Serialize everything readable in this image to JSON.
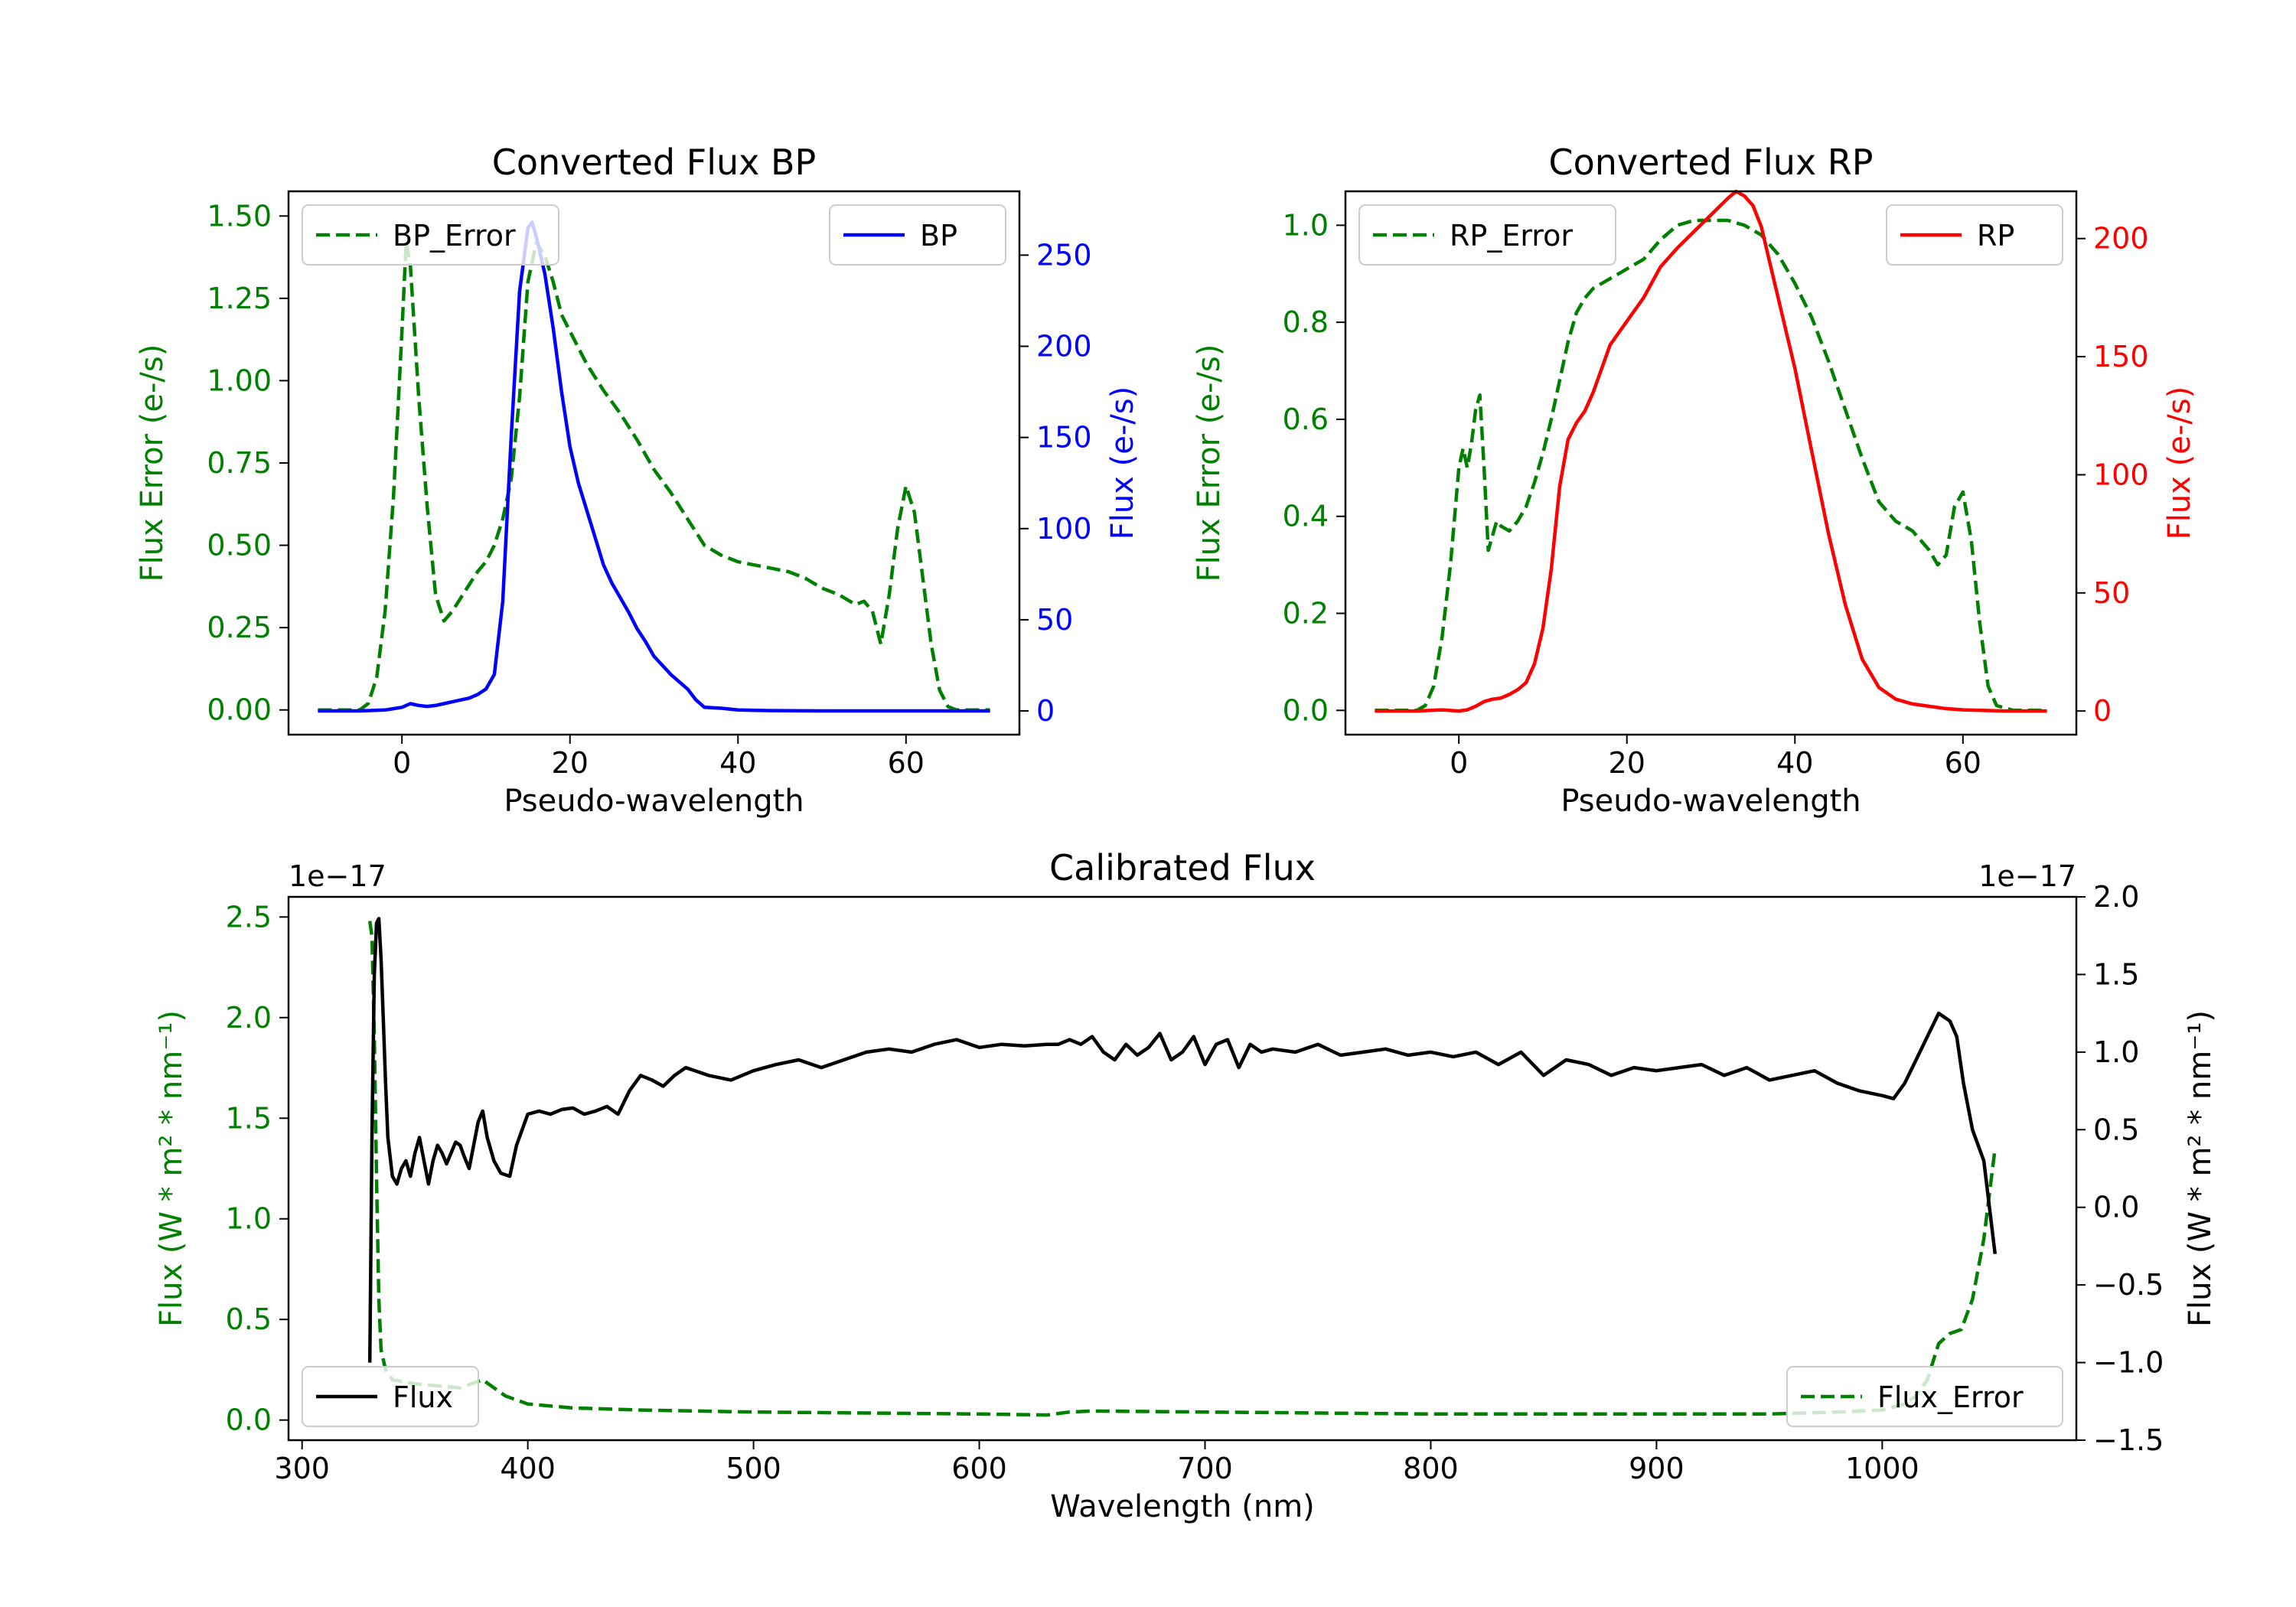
{
  "chart_data": [
    {
      "type": "line",
      "title": "Converted Flux BP",
      "xlabel": "Pseudo-wavelength",
      "ylabel_left": "Flux Error (e-/s)",
      "ylabel_right": "Flux (e-/s)",
      "xlim": [
        -13.5,
        73.5
      ],
      "ylim_left": [
        -0.075,
        1.575
      ],
      "ylim_right": [
        -13,
        285
      ],
      "xticks": [
        0,
        20,
        40,
        60
      ],
      "yticks_left": [
        0.0,
        0.25,
        0.5,
        0.75,
        1.0,
        1.25,
        1.5
      ],
      "yticks_left_labels": [
        "0.00",
        "0.25",
        "0.50",
        "0.75",
        "1.00",
        "1.25",
        "1.50"
      ],
      "yticks_right": [
        0,
        50,
        100,
        150,
        200,
        250
      ],
      "yticks_right_labels": [
        "0",
        "50",
        "100",
        "150",
        "200",
        "250"
      ],
      "legend": {
        "left": "BP_Error",
        "right": "BP"
      },
      "series": [
        {
          "name": "BP_Error",
          "axis": "left",
          "color": "#008000",
          "dash": "dashed",
          "x": [
            -10,
            -5,
            -4,
            -3,
            -2,
            -1,
            0,
            0.5,
            1,
            2,
            3,
            4,
            5,
            6,
            7,
            8,
            9,
            10,
            11,
            12,
            13,
            14,
            15,
            16,
            17,
            18,
            19,
            20,
            22,
            24,
            26,
            28,
            30,
            32,
            34,
            36,
            38,
            40,
            42,
            44,
            46,
            48,
            50,
            52,
            54,
            55,
            56,
            57,
            58,
            59,
            60,
            61,
            62,
            63,
            64,
            65,
            66,
            68,
            70
          ],
          "y": [
            0,
            0,
            0.02,
            0.1,
            0.3,
            0.65,
            1.15,
            1.42,
            1.35,
            0.95,
            0.62,
            0.35,
            0.27,
            0.3,
            0.34,
            0.38,
            0.42,
            0.45,
            0.5,
            0.58,
            0.7,
            0.95,
            1.3,
            1.42,
            1.38,
            1.3,
            1.2,
            1.15,
            1.05,
            0.97,
            0.9,
            0.82,
            0.73,
            0.66,
            0.58,
            0.5,
            0.47,
            0.45,
            0.44,
            0.43,
            0.42,
            0.4,
            0.37,
            0.35,
            0.32,
            0.33,
            0.3,
            0.2,
            0.35,
            0.55,
            0.68,
            0.6,
            0.4,
            0.2,
            0.06,
            0.01,
            0,
            0,
            0
          ]
        },
        {
          "name": "BP",
          "axis": "right",
          "color": "#0000ff",
          "dash": "solid",
          "x": [
            -10,
            -5,
            -2,
            0,
            1,
            2,
            3,
            4,
            5,
            6,
            7,
            8,
            9,
            10,
            11,
            12,
            13,
            14,
            15,
            15.5,
            16,
            17,
            18,
            19,
            20,
            21,
            22,
            23,
            24,
            25,
            26,
            27,
            28,
            29,
            30,
            31,
            32,
            33,
            34,
            35,
            36,
            38,
            40,
            42,
            44,
            46,
            48,
            50,
            55,
            60,
            65,
            70
          ],
          "y": [
            0,
            0,
            0.5,
            2,
            4,
            3,
            2.5,
            3,
            4,
            5,
            6,
            7,
            9,
            12,
            20,
            60,
            150,
            230,
            265,
            268,
            260,
            240,
            210,
            175,
            145,
            125,
            110,
            95,
            80,
            70,
            62,
            54,
            45,
            38,
            30,
            25,
            20,
            16,
            12,
            6,
            2,
            1.5,
            0.5,
            0.3,
            0.2,
            0.1,
            0.05,
            0,
            0,
            0,
            0,
            0
          ]
        }
      ]
    },
    {
      "type": "line",
      "title": "Converted Flux RP",
      "xlabel": "Pseudo-wavelength",
      "ylabel_left": "Flux Error (e-/s)",
      "ylabel_right": "Flux (e-/s)",
      "xlim": [
        -13.5,
        73.5
      ],
      "ylim_left": [
        -0.05,
        1.07
      ],
      "ylim_right": [
        -10,
        220
      ],
      "xticks": [
        0,
        20,
        40,
        60
      ],
      "yticks_left": [
        0.0,
        0.2,
        0.4,
        0.6,
        0.8,
        1.0
      ],
      "yticks_left_labels": [
        "0.0",
        "0.2",
        "0.4",
        "0.6",
        "0.8",
        "1.0"
      ],
      "yticks_right": [
        0,
        50,
        100,
        150,
        200
      ],
      "yticks_right_labels": [
        "0",
        "50",
        "100",
        "150",
        "200"
      ],
      "legend": {
        "left": "RP_Error",
        "right": "RP"
      },
      "series": [
        {
          "name": "RP_Error",
          "axis": "left",
          "color": "#008000",
          "dash": "dashed",
          "x": [
            -10,
            -5,
            -4,
            -3,
            -2,
            -1,
            0,
            0.5,
            1,
            1.5,
            2,
            2.5,
            3,
            3.5,
            4,
            4.5,
            5,
            6,
            7,
            8,
            9,
            10,
            11,
            12,
            13,
            14,
            15,
            16,
            17,
            18,
            19,
            20,
            22,
            24,
            26,
            28,
            30,
            32,
            34,
            36,
            38,
            40,
            42,
            44,
            46,
            48,
            50,
            52,
            54,
            55,
            56,
            57,
            58,
            59,
            60,
            61,
            62,
            63,
            64,
            66,
            70
          ],
          "y": [
            0,
            0,
            0.01,
            0.05,
            0.15,
            0.3,
            0.5,
            0.54,
            0.5,
            0.55,
            0.62,
            0.65,
            0.5,
            0.33,
            0.36,
            0.39,
            0.38,
            0.37,
            0.39,
            0.42,
            0.47,
            0.53,
            0.6,
            0.68,
            0.76,
            0.82,
            0.85,
            0.87,
            0.88,
            0.89,
            0.9,
            0.91,
            0.93,
            0.97,
            1.0,
            1.01,
            1.01,
            1.01,
            1.0,
            0.98,
            0.94,
            0.88,
            0.81,
            0.72,
            0.62,
            0.52,
            0.43,
            0.39,
            0.37,
            0.35,
            0.33,
            0.3,
            0.32,
            0.42,
            0.45,
            0.35,
            0.18,
            0.05,
            0.01,
            0,
            0
          ]
        },
        {
          "name": "RP",
          "axis": "right",
          "color": "#ff0000",
          "dash": "solid",
          "x": [
            -10,
            -5,
            -2,
            0,
            1,
            2,
            3,
            4,
            5,
            6,
            7,
            8,
            9,
            10,
            11,
            12,
            13,
            14,
            15,
            16,
            17,
            18,
            19,
            20,
            22,
            24,
            26,
            28,
            30,
            32,
            33,
            34,
            35,
            36,
            37,
            38,
            40,
            42,
            44,
            46,
            48,
            50,
            52,
            54,
            56,
            58,
            60,
            65,
            70
          ],
          "y": [
            0,
            0,
            0.5,
            0,
            0.5,
            2,
            4,
            5,
            5.5,
            7,
            9,
            12,
            20,
            35,
            60,
            95,
            115,
            122,
            127,
            135,
            145,
            155,
            160,
            165,
            175,
            188,
            196,
            203,
            210,
            217,
            220,
            218,
            214,
            205,
            190,
            175,
            145,
            110,
            75,
            45,
            22,
            10,
            5,
            3,
            2,
            1,
            0.5,
            0,
            0
          ]
        }
      ]
    },
    {
      "type": "line",
      "title": "Calibrated Flux",
      "xlabel": "Wavelength (nm)",
      "ylabel_left": "Flux (W * m² * nm⁻¹)",
      "ylabel_right": "Flux (W * m² * nm⁻¹)",
      "offset_left": "1e−17",
      "offset_right": "1e−17",
      "xlim": [
        294,
        1086
      ],
      "ylim_left": [
        -0.1,
        2.6
      ],
      "ylim_right": [
        -1.5,
        2.0
      ],
      "xticks": [
        300,
        400,
        500,
        600,
        700,
        800,
        900,
        1000
      ],
      "yticks_left": [
        0.0,
        0.5,
        1.0,
        1.5,
        2.0,
        2.5
      ],
      "yticks_left_labels": [
        "0.0",
        "0.5",
        "1.0",
        "1.5",
        "2.0",
        "2.5"
      ],
      "yticks_right": [
        -1.5,
        -1.0,
        -0.5,
        0.0,
        0.5,
        1.0,
        1.5,
        2.0
      ],
      "yticks_right_labels": [
        "−1.5",
        "−1.0",
        "−0.5",
        "0.0",
        "0.5",
        "1.0",
        "1.5",
        "2.0"
      ],
      "legend": {
        "left": "Flux",
        "right": "Flux_Error"
      },
      "series": [
        {
          "name": "Flux_Error",
          "axis": "left",
          "color": "#008000",
          "dash": "dashed",
          "x": [
            330,
            331,
            332,
            333,
            334,
            335,
            337,
            340,
            345,
            350,
            360,
            370,
            380,
            390,
            400,
            420,
            450,
            500,
            550,
            600,
            630,
            640,
            650,
            700,
            750,
            800,
            850,
            900,
            950,
            980,
            1000,
            1010,
            1015,
            1020,
            1025,
            1030,
            1035,
            1040,
            1045,
            1050
          ],
          "y": [
            2.48,
            2.4,
            1.9,
            1.2,
            0.6,
            0.35,
            0.25,
            0.2,
            0.19,
            0.18,
            0.17,
            0.16,
            0.2,
            0.12,
            0.08,
            0.06,
            0.05,
            0.04,
            0.035,
            0.03,
            0.025,
            0.04,
            0.045,
            0.04,
            0.035,
            0.03,
            0.03,
            0.03,
            0.03,
            0.04,
            0.05,
            0.08,
            0.12,
            0.2,
            0.38,
            0.43,
            0.45,
            0.6,
            0.9,
            1.35
          ]
        },
        {
          "name": "Flux",
          "axis": "right",
          "color": "#000000",
          "dash": "solid",
          "x": [
            330,
            331,
            332,
            333,
            334,
            335,
            336,
            337,
            338,
            340,
            342,
            344,
            346,
            348,
            350,
            352,
            354,
            356,
            358,
            360,
            362,
            364,
            366,
            368,
            370,
            372,
            374,
            376,
            378,
            380,
            382,
            385,
            388,
            392,
            395,
            400,
            405,
            410,
            415,
            420,
            425,
            430,
            435,
            440,
            445,
            450,
            455,
            460,
            465,
            470,
            480,
            490,
            500,
            510,
            520,
            530,
            540,
            550,
            560,
            570,
            580,
            590,
            600,
            610,
            620,
            630,
            635,
            640,
            645,
            650,
            655,
            660,
            665,
            670,
            675,
            680,
            685,
            690,
            695,
            700,
            705,
            710,
            715,
            720,
            725,
            730,
            740,
            750,
            760,
            770,
            780,
            790,
            800,
            810,
            820,
            830,
            840,
            850,
            860,
            870,
            880,
            890,
            900,
            910,
            920,
            930,
            940,
            950,
            960,
            970,
            980,
            990,
            1000,
            1005,
            1010,
            1015,
            1020,
            1025,
            1030,
            1033,
            1036,
            1040,
            1045,
            1050
          ],
          "y": [
            -1.0,
            0.5,
            1.5,
            1.83,
            1.86,
            1.6,
            1.2,
            0.8,
            0.45,
            0.2,
            0.15,
            0.25,
            0.3,
            0.2,
            0.35,
            0.45,
            0.3,
            0.15,
            0.3,
            0.4,
            0.35,
            0.28,
            0.35,
            0.42,
            0.4,
            0.32,
            0.25,
            0.4,
            0.55,
            0.62,
            0.45,
            0.3,
            0.22,
            0.2,
            0.4,
            0.6,
            0.62,
            0.6,
            0.63,
            0.64,
            0.6,
            0.62,
            0.65,
            0.6,
            0.75,
            0.85,
            0.82,
            0.78,
            0.85,
            0.9,
            0.85,
            0.82,
            0.88,
            0.92,
            0.95,
            0.9,
            0.95,
            1.0,
            1.02,
            1.0,
            1.05,
            1.08,
            1.03,
            1.05,
            1.04,
            1.05,
            1.05,
            1.08,
            1.05,
            1.1,
            1.0,
            0.95,
            1.05,
            0.98,
            1.03,
            1.12,
            0.95,
            1.0,
            1.1,
            0.92,
            1.05,
            1.08,
            0.9,
            1.05,
            1.0,
            1.02,
            1.0,
            1.05,
            0.98,
            1.0,
            1.02,
            0.98,
            1.0,
            0.97,
            1.0,
            0.92,
            1.0,
            0.85,
            0.95,
            0.92,
            0.85,
            0.9,
            0.88,
            0.9,
            0.92,
            0.85,
            0.9,
            0.82,
            0.85,
            0.88,
            0.8,
            0.75,
            0.72,
            0.7,
            0.8,
            0.95,
            1.1,
            1.25,
            1.2,
            1.1,
            0.8,
            0.5,
            0.3,
            -0.3
          ]
        }
      ]
    }
  ]
}
